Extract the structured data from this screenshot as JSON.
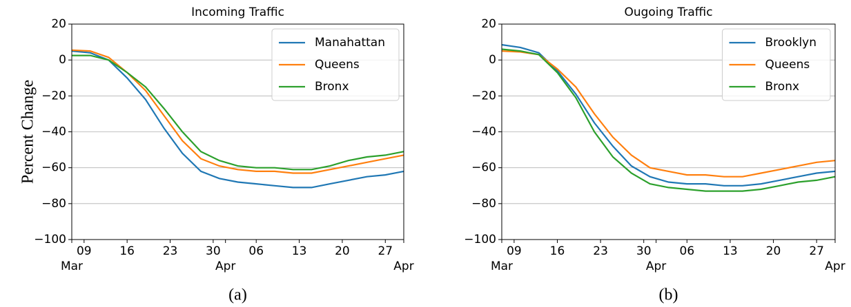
{
  "chart_data": [
    {
      "type": "line",
      "title": "Incoming Traffic",
      "ylabel": "Percent Change",
      "caption": "(a)",
      "x": [
        "03-07",
        "03-10",
        "03-13",
        "03-16",
        "03-19",
        "03-22",
        "03-25",
        "03-28",
        "03-31",
        "04-03",
        "04-06",
        "04-09",
        "04-12",
        "04-15",
        "04-18",
        "04-21",
        "04-24",
        "04-27",
        "04-30"
      ],
      "series": [
        {
          "name": "Manahattan",
          "color": "#1f77b4",
          "values": [
            5,
            4,
            0,
            -10,
            -22,
            -38,
            -52,
            -62,
            -66,
            -68,
            -69,
            -70,
            -71,
            -71,
            -69,
            -67,
            -65,
            -64,
            -62
          ]
        },
        {
          "name": "Queens",
          "color": "#ff7f0e",
          "values": [
            5.5,
            5,
            1.5,
            -7,
            -17,
            -31,
            -45,
            -55,
            -59,
            -61,
            -62,
            -62,
            -63,
            -63,
            -61,
            -59,
            -57,
            -55,
            -53
          ]
        },
        {
          "name": "Bronx",
          "color": "#2ca02c",
          "values": [
            2.5,
            2.5,
            0,
            -7,
            -15,
            -27,
            -40,
            -51,
            -56,
            -59,
            -60,
            -60,
            -61,
            -61,
            -59,
            -56,
            -54,
            -53,
            -51
          ]
        }
      ],
      "xlim": [
        "03-07",
        "04-30"
      ],
      "xticks": [
        {
          "value": "03-09",
          "label": "09"
        },
        {
          "value": "03-16",
          "label": "16"
        },
        {
          "value": "03-23",
          "label": "23"
        },
        {
          "value": "03-30",
          "label": "30"
        },
        {
          "value": "04-06",
          "label": "06"
        },
        {
          "value": "04-13",
          "label": "13"
        },
        {
          "value": "04-20",
          "label": "20"
        },
        {
          "value": "04-27",
          "label": "27"
        }
      ],
      "month_labels": [
        {
          "value": "03-07",
          "label": "Mar"
        },
        {
          "value": "04-01",
          "label": "Apr"
        },
        {
          "value": "04-30",
          "label": "Apr"
        }
      ],
      "ylim": [
        -100,
        20
      ],
      "yticks": [
        {
          "value": -100,
          "label": "−100"
        },
        {
          "value": -80,
          "label": "−80"
        },
        {
          "value": -60,
          "label": "−60"
        },
        {
          "value": -40,
          "label": "−40"
        },
        {
          "value": -20,
          "label": "−20"
        },
        0,
        20
      ],
      "grid": true,
      "legend": "upper right"
    },
    {
      "type": "line",
      "title": "Ougoing Traffic",
      "caption": "(b)",
      "x": [
        "03-07",
        "03-10",
        "03-13",
        "03-16",
        "03-19",
        "03-22",
        "03-25",
        "03-28",
        "03-31",
        "04-03",
        "04-06",
        "04-09",
        "04-12",
        "04-15",
        "04-18",
        "04-21",
        "04-24",
        "04-27",
        "04-30"
      ],
      "series": [
        {
          "name": "Brooklyn",
          "color": "#1f77b4",
          "values": [
            8.5,
            7,
            4,
            -6,
            -19,
            -35,
            -48,
            -59,
            -65,
            -68,
            -69,
            -69,
            -70,
            -70,
            -69,
            -67,
            -65,
            -63,
            -62
          ]
        },
        {
          "name": "Queens",
          "color": "#ff7f0e",
          "values": [
            5,
            4.5,
            3,
            -5,
            -15,
            -30,
            -43,
            -53,
            -60,
            -62,
            -64,
            -64,
            -65,
            -65,
            -63,
            -61,
            -59,
            -57,
            -56
          ]
        },
        {
          "name": "Bronx",
          "color": "#2ca02c",
          "values": [
            6,
            5,
            3,
            -7,
            -21,
            -40,
            -54,
            -63,
            -69,
            -71,
            -72,
            -73,
            -73,
            -73,
            -72,
            -70,
            -68,
            -67,
            -65
          ]
        }
      ],
      "xlim": [
        "03-07",
        "04-30"
      ],
      "xticks": [
        {
          "value": "03-09",
          "label": "09"
        },
        {
          "value": "03-16",
          "label": "16"
        },
        {
          "value": "03-23",
          "label": "23"
        },
        {
          "value": "03-30",
          "label": "30"
        },
        {
          "value": "04-06",
          "label": "06"
        },
        {
          "value": "04-13",
          "label": "13"
        },
        {
          "value": "04-20",
          "label": "20"
        },
        {
          "value": "04-27",
          "label": "27"
        }
      ],
      "month_labels": [
        {
          "value": "03-07",
          "label": "Mar"
        },
        {
          "value": "04-01",
          "label": "Apr"
        },
        {
          "value": "04-30",
          "label": "Apr"
        }
      ],
      "ylim": [
        -100,
        20
      ],
      "yticks": [
        {
          "value": -100,
          "label": "−100"
        },
        {
          "value": -80,
          "label": "−80"
        },
        {
          "value": -60,
          "label": "−60"
        },
        {
          "value": -40,
          "label": "−40"
        },
        {
          "value": -20,
          "label": "−20"
        },
        0,
        20
      ],
      "grid": true,
      "legend": "upper right"
    }
  ]
}
